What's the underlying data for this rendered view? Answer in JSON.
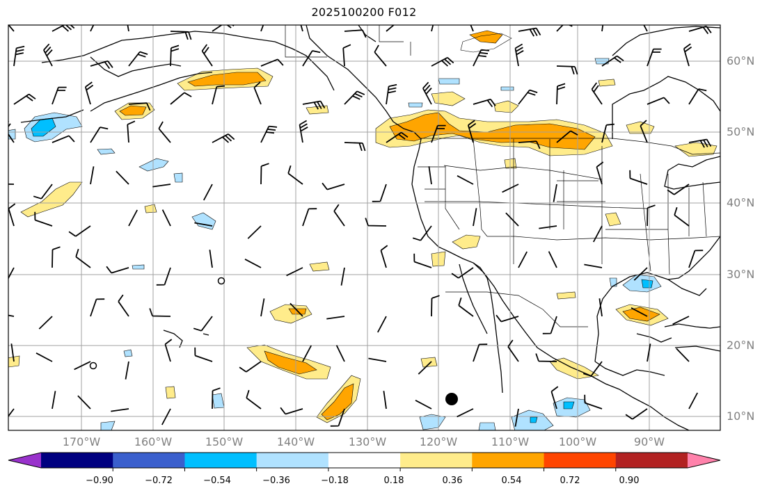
{
  "title": "2025100200 F012",
  "lon_labels": [
    "170°W",
    "160°W",
    "150°W",
    "140°W",
    "130°W",
    "120°W",
    "110°W",
    "100°W",
    "90°W"
  ],
  "lat_labels": [
    "60°N",
    "50°N",
    "40°N",
    "30°N",
    "20°N",
    "10°N"
  ],
  "colorbar": {
    "colors": [
      "#9932cc",
      "#000080",
      "#3a5fcd",
      "#00bfff",
      "#b0e2ff",
      "#ffffff",
      "#ffec8b",
      "#ffa500",
      "#ff4500",
      "#b22222",
      "#ff82ab"
    ],
    "tick_labels": [
      "−0.90",
      "−0.72",
      "−0.54",
      "−0.36",
      "−0.18",
      "0.18",
      "0.36",
      "0.54",
      "0.72",
      "0.90"
    ]
  },
  "colors": {
    "gridline": "#a0a0a0",
    "coast": "#000000",
    "axis_label": "#808080"
  }
}
